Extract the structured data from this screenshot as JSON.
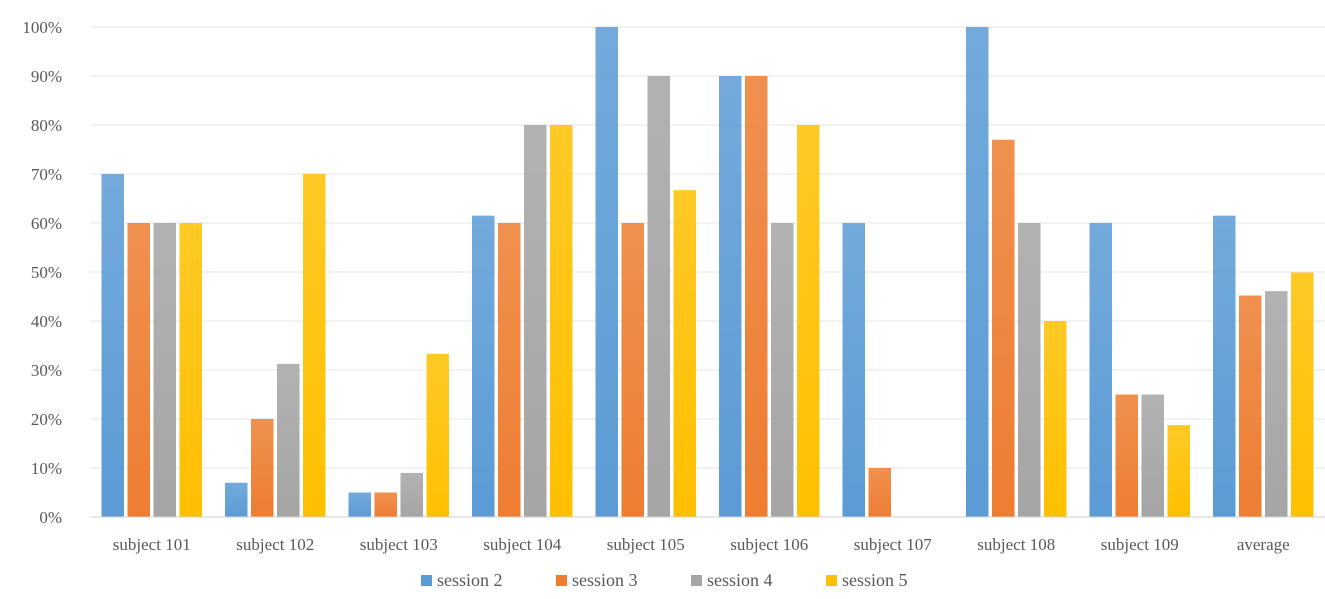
{
  "chart_data": {
    "type": "bar",
    "categories": [
      "subject 101",
      "subject 102",
      "subject 103",
      "subject 104",
      "subject 105",
      "subject 106",
      "subject 107",
      "subject 108",
      "subject 109",
      "average"
    ],
    "series": [
      {
        "name": "session 2",
        "color": "#5B9BD5",
        "values": [
          70,
          7,
          5,
          61.5,
          100,
          90,
          60,
          100,
          60,
          61.5
        ]
      },
      {
        "name": "session 3",
        "color": "#ED7D31",
        "values": [
          60,
          20,
          5,
          60,
          60,
          90,
          10,
          77,
          25,
          45.2
        ]
      },
      {
        "name": "session 4",
        "color": "#A5A5A5",
        "values": [
          60,
          31.25,
          9,
          80,
          90,
          60,
          0,
          60,
          25,
          46.1
        ]
      },
      {
        "name": "session 5",
        "color": "#FFC000",
        "values": [
          60,
          70,
          33.3,
          80,
          66.7,
          80,
          0,
          40,
          18.75,
          49.9
        ]
      }
    ],
    "ylim": [
      0,
      100
    ],
    "yticks": [
      "0%",
      "10%",
      "20%",
      "30%",
      "40%",
      "50%",
      "60%",
      "70%",
      "80%",
      "90%",
      "100%"
    ],
    "grid": true,
    "legend": "bottom",
    "title": "",
    "xlabel": "",
    "ylabel": ""
  }
}
